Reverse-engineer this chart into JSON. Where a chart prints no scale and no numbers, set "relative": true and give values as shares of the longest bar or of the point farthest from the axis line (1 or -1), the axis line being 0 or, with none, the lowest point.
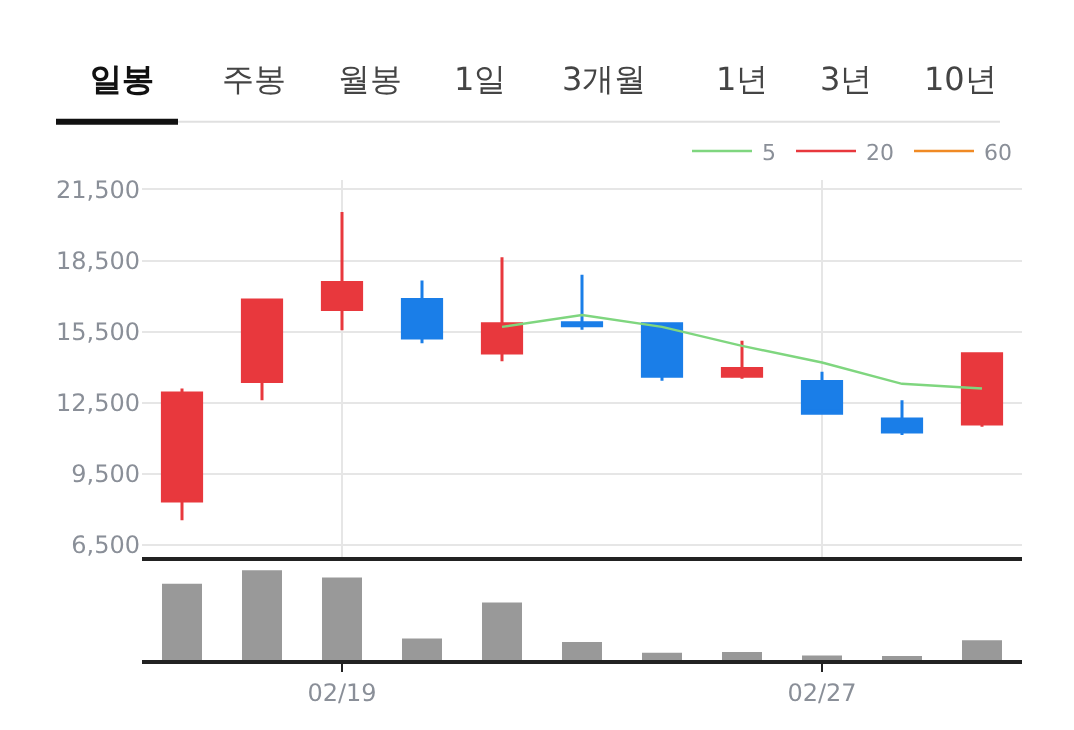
{
  "chart_data": [
    {
      "type": "candlestick",
      "annotations": [
        "일봉",
        "주봉",
        "월봉",
        "1일",
        "3개월",
        "1년",
        "3년",
        "10년"
      ],
      "categories": [
        null,
        null,
        null,
        null,
        null,
        null,
        null,
        null,
        null,
        null,
        null
      ],
      "ohlc": [
        [
          8360,
          13100,
          7540,
          12910
        ],
        [
          13400,
          16840,
          12610,
          16840
        ],
        [
          16430,
          20550,
          15560,
          17570
        ],
        [
          16860,
          17660,
          15010,
          15230
        ],
        [
          14600,
          18640,
          14250,
          15830
        ],
        [
          15880,
          17900,
          15580,
          15750
        ],
        [
          15830,
          15830,
          13430,
          13620
        ],
        [
          13620,
          15120,
          13510,
          13950
        ],
        [
          13400,
          13810,
          12060,
          12060
        ],
        [
          11820,
          12610,
          11140,
          11270
        ],
        [
          11600,
          14570,
          11490,
          14570
        ]
      ],
      "colors": [
        "#e8383d",
        "#e8383d",
        "#e8383d",
        "#1a7ee8",
        "#e8383d",
        "#1a7ee8",
        "#1a7ee8",
        "#e8383d",
        "#1a7ee8",
        "#1a7ee8",
        "#e8383d"
      ],
      "series": [
        {
          "type": "line",
          "name": "5",
          "color": "#7fd67f",
          "values": [
            null,
            null,
            null,
            null,
            15700,
            16200,
            15700,
            14900,
            14200,
            13300,
            13100
          ]
        },
        {
          "type": "line",
          "name": "20",
          "color": "#e8383d",
          "values": [
            null,
            null,
            null,
            null,
            null,
            null,
            null,
            null,
            null,
            null,
            null
          ]
        },
        {
          "type": "line",
          "name": "60",
          "color": "#f08a24",
          "values": [
            null,
            null,
            null,
            null,
            null,
            null,
            null,
            null,
            null,
            null,
            null
          ]
        }
      ],
      "ylim": [
        6000,
        21900
      ],
      "yticks": [
        {
          "value": 6500,
          "label": "6,500"
        },
        {
          "value": 9500,
          "label": "9,500"
        },
        {
          "value": 12500,
          "label": "12,500"
        },
        {
          "value": 15500,
          "label": "15,500"
        },
        {
          "value": 18500,
          "label": "18,500"
        },
        {
          "value": 21500,
          "label": "21,500"
        }
      ],
      "grid": true,
      "legend": "top right",
      "tick_labels": "y"
    },
    {
      "type": "bar",
      "categories": [
        null,
        null,
        "02/19",
        null,
        null,
        null,
        null,
        null,
        "02/27",
        null,
        null
      ],
      "values": [
        0.85,
        1,
        0.92,
        0.24,
        0.64,
        0.2,
        0.08,
        0.09,
        0.05,
        0.04,
        0.22
      ],
      "color": "#999999",
      "relative": true
    }
  ]
}
